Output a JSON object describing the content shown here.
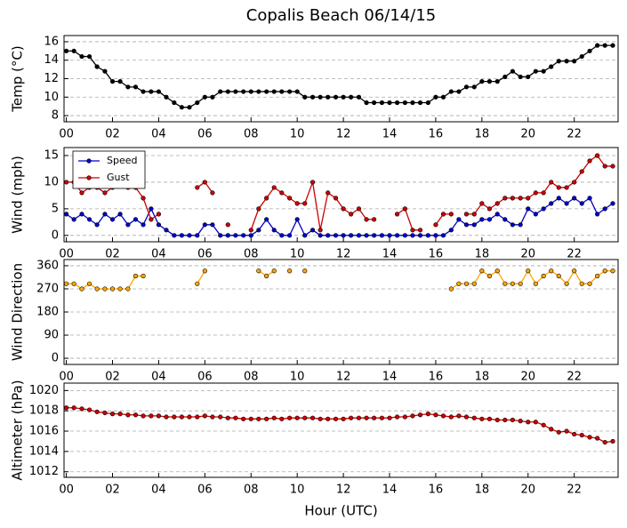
{
  "chart_data": [
    {
      "type": "line",
      "title": "Copalis Beach 06/14/15",
      "ylabel": "Temp (°C)",
      "x": [
        0,
        0.33,
        0.67,
        1,
        1.33,
        1.67,
        2,
        2.33,
        2.67,
        3,
        3.33,
        3.67,
        4,
        4.33,
        4.67,
        5,
        5.33,
        5.67,
        6,
        6.33,
        6.67,
        7,
        7.33,
        7.67,
        8,
        8.33,
        8.67,
        9,
        9.33,
        9.67,
        10,
        10.33,
        10.67,
        11,
        11.33,
        11.67,
        12,
        12.33,
        12.67,
        13,
        13.33,
        13.67,
        14,
        14.33,
        14.67,
        15,
        15.33,
        15.67,
        16,
        16.33,
        16.67,
        17,
        17.33,
        17.67,
        18,
        18.33,
        18.67,
        19,
        19.33,
        19.67,
        20,
        20.33,
        20.67,
        21,
        21.33,
        21.67,
        22,
        22.33,
        22.67,
        23,
        23.33,
        23.67
      ],
      "xlim": [
        -0.1,
        23.9
      ],
      "xticks": [
        {
          "value": 0,
          "label": "00"
        },
        {
          "value": 2,
          "label": "02"
        },
        {
          "value": 4,
          "label": "04"
        },
        {
          "value": 6,
          "label": "06"
        },
        {
          "value": 8,
          "label": "08"
        },
        {
          "value": 10,
          "label": "10"
        },
        {
          "value": 12,
          "label": "12"
        },
        {
          "value": 14,
          "label": "14"
        },
        {
          "value": 16,
          "label": "16"
        },
        {
          "value": 18,
          "label": "18"
        },
        {
          "value": 20,
          "label": "20"
        },
        {
          "value": 22,
          "label": "22"
        }
      ],
      "ylim": [
        7.33,
        16.67
      ],
      "yticks": [
        8,
        10,
        12,
        14,
        16
      ],
      "grid": true,
      "series": [
        {
          "color": "#000000",
          "values": [
            15.0,
            15.0,
            14.4,
            14.4,
            13.3,
            12.8,
            11.7,
            11.7,
            11.1,
            11.1,
            10.6,
            10.6,
            10.6,
            10.0,
            9.4,
            8.9,
            8.9,
            9.4,
            10.0,
            10.0,
            10.6,
            10.6,
            10.6,
            10.6,
            10.6,
            10.6,
            10.6,
            10.6,
            10.6,
            10.6,
            10.6,
            10.0,
            10.0,
            10.0,
            10.0,
            10.0,
            10.0,
            10.0,
            10.0,
            9.4,
            9.4,
            9.4,
            9.4,
            9.4,
            9.4,
            9.4,
            9.4,
            9.4,
            10.0,
            10.0,
            10.6,
            10.6,
            11.1,
            11.1,
            11.7,
            11.7,
            11.7,
            12.2,
            12.8,
            12.2,
            12.2,
            12.8,
            12.8,
            13.3,
            13.9,
            13.9,
            13.9,
            14.4,
            15.0,
            15.6,
            15.6,
            15.6
          ]
        }
      ]
    },
    {
      "type": "line",
      "ylabel": "Wind (mph)",
      "x": [
        0,
        0.33,
        0.67,
        1,
        1.33,
        1.67,
        2,
        2.33,
        2.67,
        3,
        3.33,
        3.67,
        4,
        4.33,
        4.67,
        5,
        5.33,
        5.67,
        6,
        6.33,
        6.67,
        7,
        7.33,
        7.67,
        8,
        8.33,
        8.67,
        9,
        9.33,
        9.67,
        10,
        10.33,
        10.67,
        11,
        11.33,
        11.67,
        12,
        12.33,
        12.67,
        13,
        13.33,
        13.67,
        14,
        14.33,
        14.67,
        15,
        15.33,
        15.67,
        16,
        16.33,
        16.67,
        17,
        17.33,
        17.67,
        18,
        18.33,
        18.67,
        19,
        19.33,
        19.67,
        20,
        20.33,
        20.67,
        21,
        21.33,
        21.67,
        22,
        22.33,
        22.67,
        23,
        23.33,
        23.67
      ],
      "xlim": [
        -0.1,
        23.9
      ],
      "xticks": [
        {
          "value": 0,
          "label": "00"
        },
        {
          "value": 2,
          "label": "02"
        },
        {
          "value": 4,
          "label": "04"
        },
        {
          "value": 6,
          "label": "06"
        },
        {
          "value": 8,
          "label": "08"
        },
        {
          "value": 10,
          "label": "10"
        },
        {
          "value": 12,
          "label": "12"
        },
        {
          "value": 14,
          "label": "14"
        },
        {
          "value": 16,
          "label": "16"
        },
        {
          "value": 18,
          "label": "18"
        },
        {
          "value": 20,
          "label": "20"
        },
        {
          "value": 22,
          "label": "22"
        }
      ],
      "ylim": [
        -1.2,
        16.5
      ],
      "yticks": [
        0,
        5,
        10,
        15
      ],
      "grid": true,
      "legend": "upper left",
      "series": [
        {
          "name": "Speed",
          "color": "#0000cc",
          "values": [
            4,
            3,
            4,
            3,
            2,
            4,
            3,
            4,
            2,
            3,
            2,
            5,
            2,
            1,
            0,
            0,
            0,
            0,
            2,
            2,
            0,
            0,
            0,
            0,
            0,
            1,
            3,
            1,
            0,
            0,
            3,
            0,
            1,
            0,
            0,
            0,
            0,
            0,
            0,
            0,
            0,
            0,
            0,
            0,
            0,
            0,
            0,
            0,
            0,
            0,
            1,
            3,
            2,
            2,
            3,
            3,
            4,
            3,
            2,
            2,
            5,
            4,
            5,
            6,
            7,
            6,
            7,
            6,
            7,
            4,
            5,
            6
          ]
        },
        {
          "name": "Gust",
          "color": "#cc0000",
          "values": [
            10,
            10,
            8,
            9,
            9,
            8,
            9,
            10,
            9,
            9,
            7,
            3,
            4,
            null,
            null,
            null,
            null,
            9,
            10,
            8,
            null,
            2,
            null,
            null,
            1,
            5,
            7,
            9,
            8,
            7,
            6,
            6,
            10,
            1,
            8,
            7,
            5,
            4,
            5,
            3,
            3,
            null,
            null,
            4,
            5,
            1,
            1,
            null,
            2,
            4,
            4,
            null,
            4,
            4,
            6,
            5,
            6,
            7,
            7,
            7,
            7,
            8,
            8,
            10,
            9,
            9,
            10,
            12,
            14,
            15,
            13,
            13
          ]
        }
      ]
    },
    {
      "type": "line",
      "ylabel": "Wind Direction",
      "x": [
        0,
        0.33,
        0.67,
        1,
        1.33,
        1.67,
        2,
        2.33,
        2.67,
        3,
        3.33,
        3.67,
        4,
        4.33,
        4.67,
        5,
        5.33,
        5.67,
        6,
        6.33,
        6.67,
        7,
        7.33,
        7.67,
        8,
        8.33,
        8.67,
        9,
        9.33,
        9.67,
        10,
        10.33,
        10.67,
        11,
        11.33,
        11.67,
        12,
        12.33,
        12.67,
        13,
        13.33,
        13.67,
        14,
        14.33,
        14.67,
        15,
        15.33,
        15.67,
        16,
        16.33,
        16.67,
        17,
        17.33,
        17.67,
        18,
        18.33,
        18.67,
        19,
        19.33,
        19.67,
        20,
        20.33,
        20.67,
        21,
        21.33,
        21.67,
        22,
        22.33,
        22.67,
        23,
        23.33,
        23.67
      ],
      "xlim": [
        -0.1,
        23.9
      ],
      "xticks": [
        {
          "value": 0,
          "label": "00"
        },
        {
          "value": 2,
          "label": "02"
        },
        {
          "value": 4,
          "label": "04"
        },
        {
          "value": 6,
          "label": "06"
        },
        {
          "value": 8,
          "label": "08"
        },
        {
          "value": 10,
          "label": "10"
        },
        {
          "value": 12,
          "label": "12"
        },
        {
          "value": 14,
          "label": "14"
        },
        {
          "value": 16,
          "label": "16"
        },
        {
          "value": 18,
          "label": "18"
        },
        {
          "value": 20,
          "label": "20"
        },
        {
          "value": 22,
          "label": "22"
        }
      ],
      "ylim": [
        -24,
        384
      ],
      "yticks": [
        0,
        90,
        180,
        270,
        360
      ],
      "grid": true,
      "series": [
        {
          "color": "#ffa500",
          "values": [
            290,
            290,
            270,
            290,
            270,
            270,
            270,
            270,
            270,
            320,
            320,
            null,
            null,
            null,
            null,
            null,
            null,
            290,
            340,
            null,
            null,
            null,
            null,
            null,
            null,
            340,
            320,
            340,
            null,
            340,
            null,
            340,
            null,
            null,
            null,
            null,
            null,
            null,
            null,
            null,
            null,
            null,
            null,
            null,
            null,
            null,
            null,
            null,
            null,
            null,
            270,
            290,
            290,
            290,
            340,
            320,
            340,
            290,
            290,
            290,
            340,
            290,
            320,
            340,
            320,
            290,
            340,
            290,
            290,
            320,
            340,
            340
          ]
        }
      ]
    },
    {
      "type": "line",
      "ylabel": "Altimeter (hPa)",
      "xlabel": "Hour (UTC)",
      "x": [
        0,
        0.33,
        0.67,
        1,
        1.33,
        1.67,
        2,
        2.33,
        2.67,
        3,
        3.33,
        3.67,
        4,
        4.33,
        4.67,
        5,
        5.33,
        5.67,
        6,
        6.33,
        6.67,
        7,
        7.33,
        7.67,
        8,
        8.33,
        8.67,
        9,
        9.33,
        9.67,
        10,
        10.33,
        10.67,
        11,
        11.33,
        11.67,
        12,
        12.33,
        12.67,
        13,
        13.33,
        13.67,
        14,
        14.33,
        14.67,
        15,
        15.33,
        15.67,
        16,
        16.33,
        16.67,
        17,
        17.33,
        17.67,
        18,
        18.33,
        18.67,
        19,
        19.33,
        19.67,
        20,
        20.33,
        20.67,
        21,
        21.33,
        21.67,
        22,
        22.33,
        22.67,
        23,
        23.33,
        23.67
      ],
      "xlim": [
        -0.1,
        23.9
      ],
      "xticks": [
        {
          "value": 0,
          "label": "00"
        },
        {
          "value": 2,
          "label": "02"
        },
        {
          "value": 4,
          "label": "04"
        },
        {
          "value": 6,
          "label": "06"
        },
        {
          "value": 8,
          "label": "08"
        },
        {
          "value": 10,
          "label": "10"
        },
        {
          "value": 12,
          "label": "12"
        },
        {
          "value": 14,
          "label": "14"
        },
        {
          "value": 16,
          "label": "16"
        },
        {
          "value": 18,
          "label": "18"
        },
        {
          "value": 20,
          "label": "20"
        },
        {
          "value": 22,
          "label": "22"
        }
      ],
      "ylim": [
        1011.45,
        1020.73
      ],
      "yticks": [
        1012,
        1014,
        1016,
        1018,
        1020
      ],
      "grid": true,
      "series": [
        {
          "color": "#cc0000",
          "values": [
            1018.3,
            1018.3,
            1018.2,
            1018.1,
            1017.9,
            1017.8,
            1017.7,
            1017.7,
            1017.6,
            1017.6,
            1017.5,
            1017.5,
            1017.5,
            1017.4,
            1017.4,
            1017.4,
            1017.4,
            1017.4,
            1017.5,
            1017.4,
            1017.4,
            1017.3,
            1017.3,
            1017.2,
            1017.2,
            1017.2,
            1017.2,
            1017.3,
            1017.2,
            1017.3,
            1017.3,
            1017.3,
            1017.3,
            1017.2,
            1017.2,
            1017.2,
            1017.2,
            1017.3,
            1017.3,
            1017.3,
            1017.3,
            1017.3,
            1017.3,
            1017.4,
            1017.4,
            1017.5,
            1017.6,
            1017.7,
            1017.6,
            1017.5,
            1017.4,
            1017.5,
            1017.4,
            1017.3,
            1017.2,
            1017.2,
            1017.1,
            1017.1,
            1017.1,
            1017.0,
            1016.9,
            1016.9,
            1016.6,
            1016.2,
            1015.9,
            1016.0,
            1015.7,
            1015.6,
            1015.4,
            1015.3,
            1014.9,
            1015.0
          ]
        }
      ]
    }
  ]
}
